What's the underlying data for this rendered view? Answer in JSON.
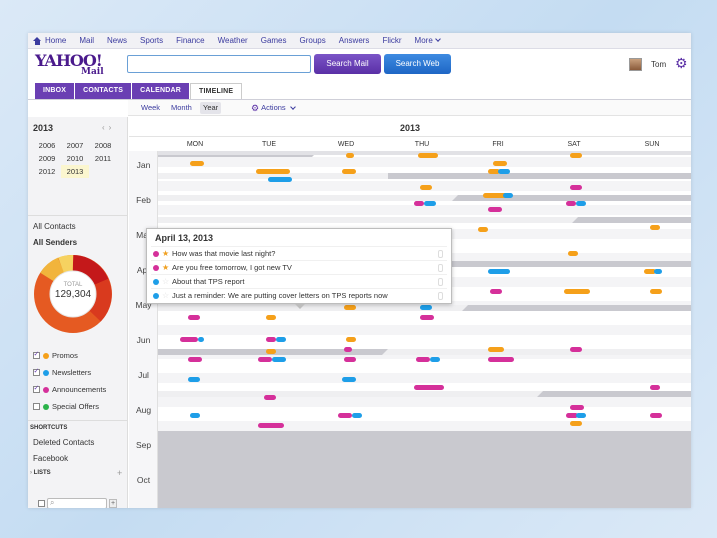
{
  "colors": {
    "orange": "#f5a01a",
    "magenta": "#d5309a",
    "blue": "#1e9ee8",
    "green": "#2bb34a",
    "purple": "#6a3fb3",
    "gray_band": "#c9c9cf"
  },
  "topnav": {
    "items": [
      "Home",
      "Mail",
      "News",
      "Sports",
      "Finance",
      "Weather",
      "Games",
      "Groups",
      "Answers",
      "Flickr"
    ],
    "more": "More"
  },
  "header": {
    "logo_main": "YAHOO!",
    "logo_sub": "Mail",
    "search_value": "",
    "search_mail_label": "Search Mail",
    "search_web_label": "Search Web",
    "user_name": "Tom"
  },
  "tabs": [
    "INBOX",
    "CONTACTS",
    "CALENDAR",
    "TIMELINE"
  ],
  "active_tab": "TIMELINE",
  "views": [
    "Week",
    "Month",
    "Year"
  ],
  "active_view": "Year",
  "actions_label": "Actions",
  "sidebar": {
    "year": "2013",
    "years": [
      "2006",
      "2007",
      "2008",
      "2009",
      "2010",
      "2011",
      "2012",
      "2013"
    ],
    "selected_year": "2013",
    "all_contacts": "All Contacts",
    "all_senders": "All Senders",
    "total_label": "TOTAL",
    "total_value": "129,304",
    "legend": [
      {
        "label": "Promos",
        "color": "#f5a01a",
        "checked": true
      },
      {
        "label": "Newsletters",
        "color": "#1e9ee8",
        "checked": true
      },
      {
        "label": "Announcements",
        "color": "#d5309a",
        "checked": true
      },
      {
        "label": "Special Offers",
        "color": "#2bb34a",
        "checked": false
      }
    ],
    "shortcuts_header": "SHORTCUTS",
    "shortcuts": [
      "Deleted Contacts",
      "Facebook"
    ],
    "lists_header": "LISTS",
    "search_value": ""
  },
  "timeline": {
    "year": "2013",
    "days": [
      "MON",
      "TUE",
      "WED",
      "THU",
      "FRI",
      "SAT",
      "SUN"
    ],
    "months": [
      "Jan",
      "Feb",
      "Mar",
      "Apr",
      "May",
      "Jun",
      "Jul",
      "Aug",
      "Sep",
      "Oct"
    ]
  },
  "popup": {
    "date": "April 13, 2013",
    "items": [
      {
        "text": "How was that movie last night?",
        "color": "#d5309a",
        "starred": true
      },
      {
        "text": "Are you free tomorrow, I got new TV",
        "color": "#d5309a",
        "starred": true
      },
      {
        "text": "About that TPS report",
        "color": "#1e9ee8",
        "starred": false
      },
      {
        "text": "Just a reminder: We are putting cover letters on TPS reports now",
        "color": "#1e9ee8",
        "starred": false
      }
    ]
  }
}
